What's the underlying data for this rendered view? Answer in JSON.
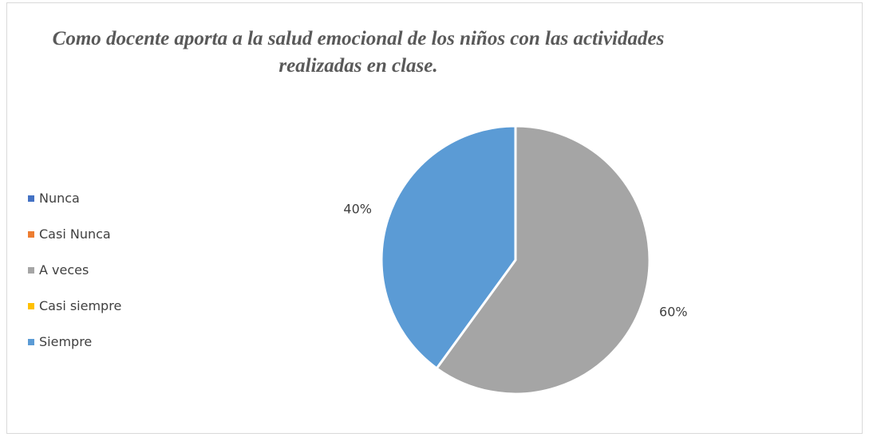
{
  "chart_data": {
    "type": "pie",
    "title": "Como docente aporta a la salud emocional de los niños con las actividades realizadas en clase.",
    "categories": [
      "Nunca",
      "Casi Nunca",
      "A veces",
      "Casi siempre",
      "Siempre"
    ],
    "values": [
      0,
      0,
      60,
      0,
      40
    ],
    "value_labels": [
      "",
      "",
      "60%",
      "",
      "40%"
    ],
    "colors": [
      "#4472c4",
      "#ed7d31",
      "#a5a5a5",
      "#ffc000",
      "#5b9bd5"
    ],
    "legend_position": "left",
    "start_angle": "top",
    "direction": "clockwise"
  }
}
